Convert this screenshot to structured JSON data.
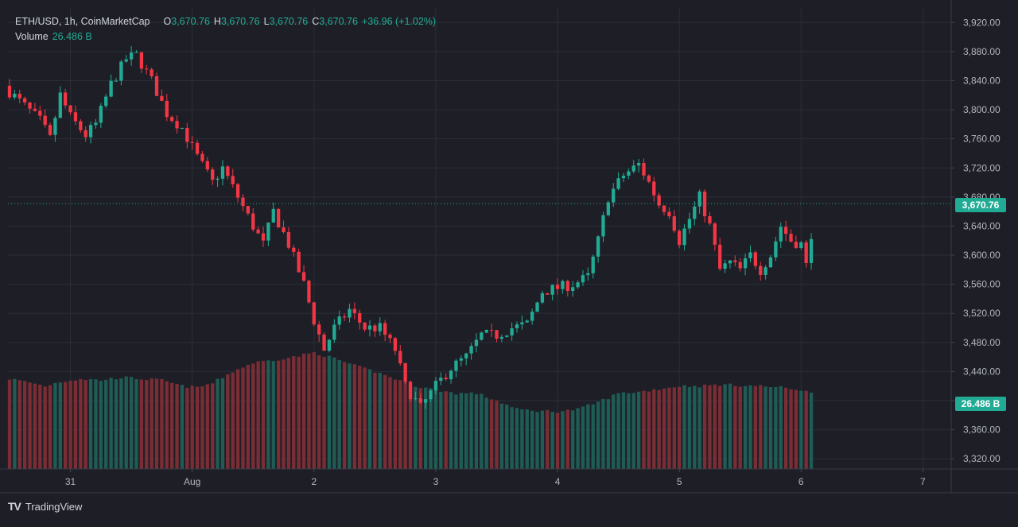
{
  "legend": {
    "symbol": "ETH/USD, 1h, CoinMarketCap",
    "o_label": "O",
    "o_value": "3,670.76",
    "h_label": "H",
    "h_value": "3,670.76",
    "l_label": "L",
    "l_value": "3,670.76",
    "c_label": "C",
    "c_value": "3,670.76",
    "change": "+36.96 (+1.02%)",
    "volume_label": "Volume",
    "volume_value": "26.486 B"
  },
  "price_tag": "3,670.76",
  "volume_tag": "26.486 B",
  "brand": {
    "name": "TradingView",
    "logo": "TV"
  },
  "colors": {
    "up": "#22ab94",
    "down": "#f23645",
    "up_vol": "#1f5c55",
    "down_vol": "#7b2d35",
    "background": "#1e1f26",
    "grid": "#2a2e39"
  },
  "chart_data": {
    "type": "candlestick",
    "title": "ETH/USD, 1h, CoinMarketCap",
    "interval": "1h",
    "y_ticks": [
      3320,
      3360,
      3400,
      3440,
      3480,
      3520,
      3560,
      3600,
      3640,
      3680,
      3720,
      3760,
      3800,
      3840,
      3880,
      3920
    ],
    "y_tick_labels": [
      "3,320.00",
      "3,360.00",
      "3,400.00",
      "3,440.00",
      "3,480.00",
      "3,520.00",
      "3,560.00",
      "3,600.00",
      "3,640.00",
      "3,680.00",
      "3,720.00",
      "3,760.00",
      "3,800.00",
      "3,840.00",
      "3,880.00",
      "3,920.00"
    ],
    "ylim": [
      3306,
      3940
    ],
    "x_tick_labels": [
      "31",
      "Aug",
      "2",
      "3",
      "4",
      "5",
      "6",
      "7"
    ],
    "x_tick_hours": [
      12,
      36,
      60,
      84,
      108,
      132,
      156,
      180
    ],
    "grid": true,
    "last_price": 3670.76,
    "close_points": [
      [
        0,
        3825
      ],
      [
        3,
        3805
      ],
      [
        6,
        3785
      ],
      [
        8,
        3760
      ],
      [
        10,
        3820
      ],
      [
        12,
        3790
      ],
      [
        15,
        3765
      ],
      [
        17,
        3780
      ],
      [
        20,
        3835
      ],
      [
        23,
        3870
      ],
      [
        25,
        3875
      ],
      [
        28,
        3840
      ],
      [
        31,
        3795
      ],
      [
        34,
        3775
      ],
      [
        37,
        3735
      ],
      [
        40,
        3700
      ],
      [
        42,
        3720
      ],
      [
        45,
        3680
      ],
      [
        48,
        3640
      ],
      [
        50,
        3615
      ],
      [
        52,
        3660
      ],
      [
        55,
        3615
      ],
      [
        58,
        3560
      ],
      [
        60,
        3510
      ],
      [
        62,
        3470
      ],
      [
        64,
        3500
      ],
      [
        67,
        3525
      ],
      [
        70,
        3500
      ],
      [
        73,
        3500
      ],
      [
        76,
        3470
      ],
      [
        78,
        3420
      ],
      [
        81,
        3390
      ],
      [
        84,
        3420
      ],
      [
        87,
        3445
      ],
      [
        90,
        3460
      ],
      [
        93,
        3490
      ],
      [
        96,
        3490
      ],
      [
        99,
        3500
      ],
      [
        102,
        3505
      ],
      [
        105,
        3550
      ],
      [
        108,
        3555
      ],
      [
        111,
        3560
      ],
      [
        114,
        3570
      ],
      [
        116,
        3620
      ],
      [
        118,
        3680
      ],
      [
        121,
        3710
      ],
      [
        124,
        3725
      ],
      [
        126,
        3700
      ],
      [
        128,
        3670
      ],
      [
        130,
        3660
      ],
      [
        132,
        3620
      ],
      [
        134,
        3650
      ],
      [
        136,
        3680
      ],
      [
        138,
        3640
      ],
      [
        140,
        3580
      ],
      [
        142,
        3590
      ],
      [
        144,
        3580
      ],
      [
        146,
        3600
      ],
      [
        148,
        3580
      ],
      [
        150,
        3600
      ],
      [
        152,
        3640
      ],
      [
        154,
        3620
      ],
      [
        156,
        3615
      ],
      [
        157,
        3585
      ],
      [
        158,
        3630
      ]
    ],
    "volume_points": [
      [
        0,
        3430
      ],
      [
        4,
        3425
      ],
      [
        7,
        3420
      ],
      [
        10,
        3426
      ],
      [
        14,
        3430
      ],
      [
        18,
        3428
      ],
      [
        22,
        3432
      ],
      [
        26,
        3430
      ],
      [
        30,
        3428
      ],
      [
        34,
        3420
      ],
      [
        37,
        3418
      ],
      [
        40,
        3424
      ],
      [
        44,
        3440
      ],
      [
        48,
        3452
      ],
      [
        52,
        3456
      ],
      [
        56,
        3460
      ],
      [
        60,
        3466
      ],
      [
        64,
        3458
      ],
      [
        68,
        3448
      ],
      [
        72,
        3440
      ],
      [
        76,
        3430
      ],
      [
        80,
        3420
      ],
      [
        84,
        3415
      ],
      [
        88,
        3410
      ],
      [
        92,
        3410
      ],
      [
        96,
        3400
      ],
      [
        100,
        3388
      ],
      [
        104,
        3386
      ],
      [
        108,
        3385
      ],
      [
        112,
        3388
      ],
      [
        116,
        3398
      ],
      [
        120,
        3410
      ],
      [
        124,
        3412
      ],
      [
        128,
        3416
      ],
      [
        132,
        3420
      ],
      [
        136,
        3420
      ],
      [
        140,
        3422
      ],
      [
        144,
        3421
      ],
      [
        148,
        3420
      ],
      [
        152,
        3418
      ],
      [
        156,
        3415
      ],
      [
        158,
        3410
      ]
    ]
  }
}
